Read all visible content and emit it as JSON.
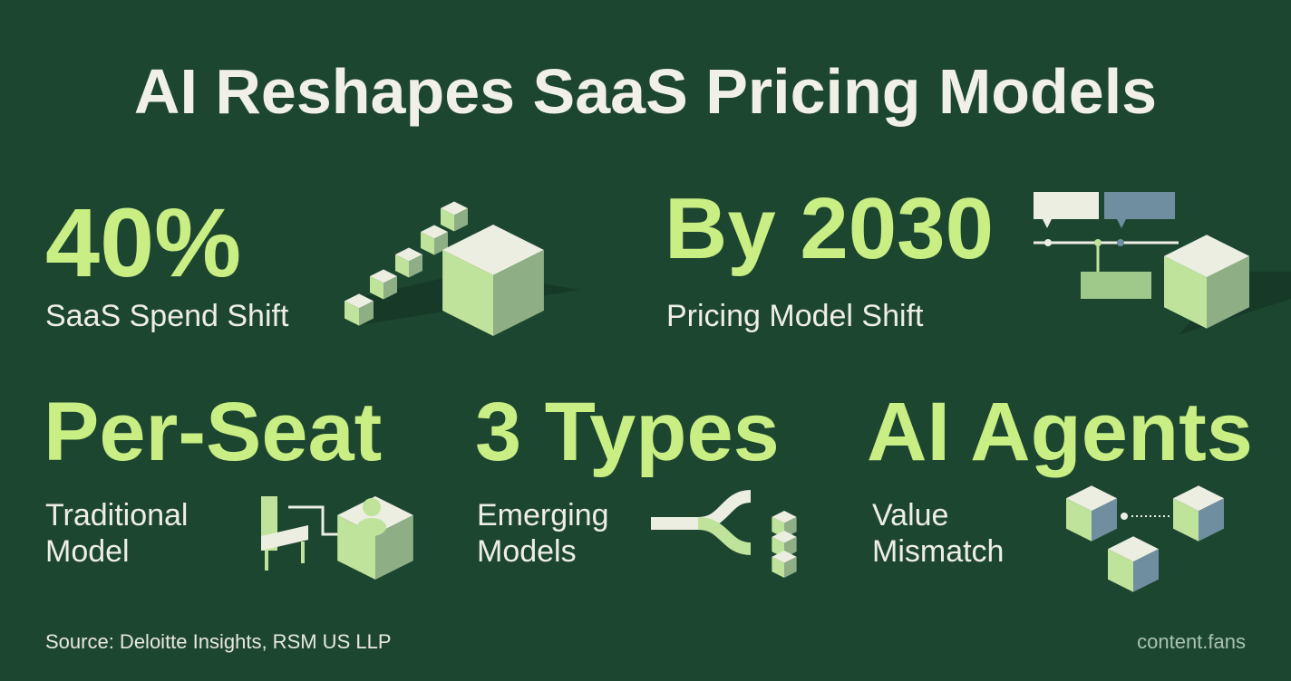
{
  "title": "AI Reshapes SaaS Pricing Models",
  "stats": [
    {
      "value": "40%",
      "label": [
        "SaaS Spend Shift"
      ]
    },
    {
      "value": "By 2030",
      "label": [
        "Pricing Model Shift"
      ]
    },
    {
      "value": "Per-Seat",
      "label": [
        "Traditional",
        "Model"
      ]
    },
    {
      "value": "3 Types",
      "label": [
        "Emerging",
        "Models"
      ]
    },
    {
      "value": "AI Agents",
      "label": [
        "Value",
        "Mismatch"
      ]
    }
  ],
  "footer": {
    "source": "Source: Deloitte Insights, RSM US LLP",
    "brand": "content.fans"
  }
}
